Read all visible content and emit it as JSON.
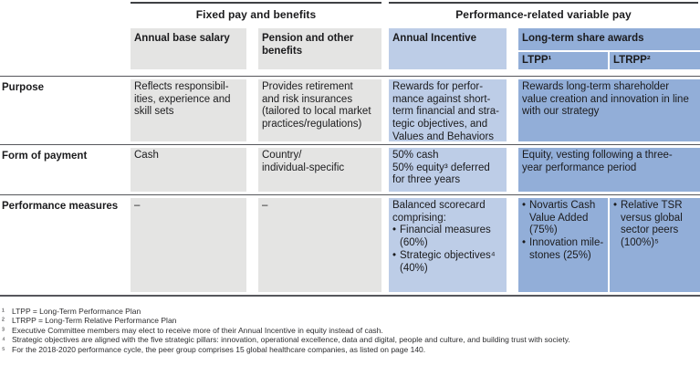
{
  "colors": {
    "cell-grey": "#e4e4e3",
    "cell-light-blue": "#bdcde7",
    "cell-medium-blue": "#92aed8",
    "rule": "#56575c",
    "rule-dark": "#3f4144",
    "text": "#1b1b1d",
    "footnote-text": "#2e2e30"
  },
  "icons": {
    "bullet_char": "•"
  },
  "table": {
    "group_headers": {
      "fixed": "Fixed pay and benefits",
      "variable": "Performance-related variable pay"
    },
    "column_headers": {
      "base_salary": "Annual base salary",
      "pension": "Pension and other benefits",
      "annual_incentive": "Annual Incentive",
      "long_term": "Long-term share awards",
      "ltpp": "LTPP¹",
      "ltrpp": "LTRPP²"
    },
    "rows": {
      "purpose": {
        "label": "Purpose",
        "base_salary": "Reflects responsibil-\nities, experience and\nskill sets",
        "pension": "Provides retirement\nand risk insurances\n(tailored to local market\npractices/regulations)",
        "annual_incentive": "Rewards for perfor-\nmance against short-\nterm financial and stra-\ntegic objectives, and\nValues and Behaviors",
        "long_term": "Rewards long-term shareholder\nvalue creation and innovation in line\nwith our strategy"
      },
      "form": {
        "label": "Form of payment",
        "base_salary": "Cash",
        "pension": "Country/\nindividual-specific",
        "annual_incentive": "50% cash\n50% equity³ deferred\nfor three years",
        "long_term": "Equity, vesting following a three-\nyear performance period"
      },
      "measures": {
        "label": "Performance measures",
        "base_salary": "–",
        "pension": "–",
        "ai_intro": "Balanced scorecard\ncomprising:",
        "ai_items": [
          "Financial measures (60%)",
          "Strategic objectives⁴ (40%)"
        ],
        "ltpp_items": [
          "Novartis Cash Value Added (75%)",
          "Innovation mile-stones (25%)"
        ],
        "ltrpp_items": [
          "Relative TSR versus global sector peers (100%)⁵"
        ]
      }
    }
  },
  "footnotes": [
    {
      "marker": "¹",
      "text": "LTPP = Long-Term Performance Plan"
    },
    {
      "marker": "²",
      "text": "LTRPP = Long-Term Relative Performance Plan"
    },
    {
      "marker": "³",
      "text": "Executive Committee members may elect to receive more of their Annual Incentive in equity instead of cash."
    },
    {
      "marker": "⁴",
      "text": "Strategic objectives are aligned with the five strategic pillars: innovation, operational excellence, data and digital, people and culture, and building trust with society."
    },
    {
      "marker": "⁵",
      "text": "For the 2018-2020 performance cycle, the peer group comprises 15 global healthcare companies, as listed on page 140."
    }
  ]
}
